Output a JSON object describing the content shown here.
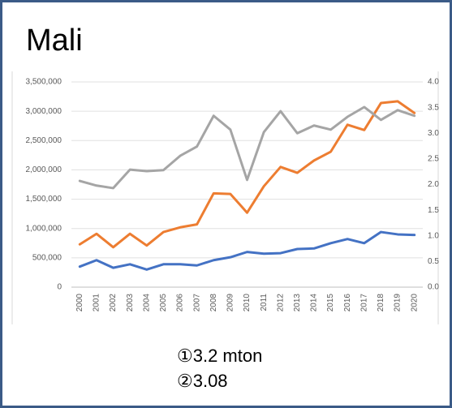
{
  "chart_data": {
    "type": "line",
    "title": "Mali",
    "categories": [
      "2000",
      "2001",
      "2002",
      "2003",
      "2004",
      "2005",
      "2006",
      "2007",
      "2008",
      "2009",
      "2010",
      "2011",
      "2012",
      "2013",
      "2014",
      "2015",
      "2016",
      "2017",
      "2018",
      "2019",
      "2020"
    ],
    "series": [
      {
        "color": "#4472c4",
        "values": [
          350000,
          460000,
          330000,
          390000,
          300000,
          390000,
          390000,
          370000,
          460000,
          510000,
          600000,
          570000,
          580000,
          650000,
          660000,
          750000,
          820000,
          750000,
          940000,
          900000,
          890000
        ]
      },
      {
        "color": "#ed7d31",
        "values": [
          730000,
          910000,
          680000,
          910000,
          710000,
          940000,
          1020000,
          1070000,
          1600000,
          1590000,
          1270000,
          1720000,
          2050000,
          1950000,
          2160000,
          2310000,
          2770000,
          2680000,
          3140000,
          3170000,
          2970000
        ]
      },
      {
        "color": "#a5a5a5",
        "axis": "y2",
        "values": [
          2.07,
          1.98,
          1.93,
          2.29,
          2.26,
          2.28,
          2.56,
          2.74,
          3.34,
          3.07,
          2.09,
          3.02,
          3.43,
          3.0,
          3.15,
          3.07,
          3.32,
          3.51,
          3.26,
          3.45,
          3.34
        ]
      }
    ],
    "ylim": [
      0,
      3500000
    ],
    "yticks": [
      0,
      {
        "value": 500000,
        "label": "500,000"
      },
      {
        "value": 1000000,
        "label": "1,000,000"
      },
      {
        "value": 1500000,
        "label": "1,500,000"
      },
      {
        "value": 2000000,
        "label": "2,000,000"
      },
      {
        "value": 2500000,
        "label": "2,500,000"
      },
      {
        "value": 3000000,
        "label": "3,000,000"
      },
      {
        "value": 3500000,
        "label": "3,500,000"
      }
    ],
    "y2lim": [
      0,
      4
    ],
    "y2ticks": [
      {
        "value": 0,
        "label": "0.0"
      },
      {
        "value": 0.5,
        "label": "0.5"
      },
      {
        "value": 1,
        "label": "1.0"
      },
      {
        "value": 1.5,
        "label": "1.5"
      },
      {
        "value": 2,
        "label": "2.0"
      },
      {
        "value": 2.5,
        "label": "2.5"
      },
      {
        "value": 3,
        "label": "3.0"
      },
      {
        "value": 3.5,
        "label": "3.5"
      },
      {
        "value": 4,
        "label": "4.0"
      }
    ],
    "grid": true,
    "annotations": [
      "①3.2 mton",
      "②3.08"
    ]
  }
}
